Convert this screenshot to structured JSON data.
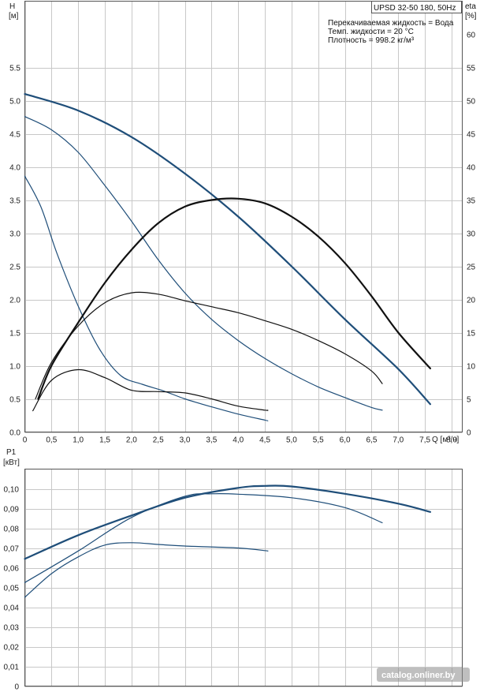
{
  "header": {
    "model": "UPSD 32-50 180, 50Hz",
    "eta_label": "eta",
    "eta_unit": "[%]"
  },
  "info": {
    "line1": "Перекачиваемая жидкость = Вода",
    "line2": "Темп. жидкости = 20 °C",
    "line3": "Плотность = 998.2 кг/м³"
  },
  "watermark": "catalog.onliner.by",
  "colors": {
    "blue": "#1f4e79",
    "black": "#111111",
    "grid": "#c8c8c8"
  },
  "chart_data": [
    {
      "type": "line",
      "name": "head-and-efficiency",
      "xlabel": "Q [м³/ч]",
      "ylabel": "H [м]",
      "y2label": "eta [%]",
      "xlim": [
        0,
        8.2
      ],
      "ylim": [
        0,
        6.5
      ],
      "y2lim": [
        0,
        65
      ],
      "x_ticks": [
        "0",
        "0,5",
        "1,0",
        "1,5",
        "2,0",
        "2,5",
        "3,0",
        "3,5",
        "4,0",
        "4,5",
        "5,0",
        "5,5",
        "6,0",
        "6,5",
        "7,0",
        "7,5",
        "8,0"
      ],
      "y_ticks": [
        "0.0",
        "0.5",
        "1.0",
        "1.5",
        "2.0",
        "2.5",
        "3.0",
        "3.5",
        "4.0",
        "4.5",
        "5.0",
        "5.5"
      ],
      "y2_ticks": [
        "0",
        "5",
        "10",
        "15",
        "20",
        "25",
        "30",
        "35",
        "40",
        "45",
        "50",
        "55",
        "60"
      ],
      "series": [
        {
          "axis": "H",
          "color": "blue",
          "width": 2.2,
          "points": [
            [
              0,
              5.1
            ],
            [
              1,
              4.85
            ],
            [
              2,
              4.45
            ],
            [
              3,
              3.9
            ],
            [
              4,
              3.25
            ],
            [
              5,
              2.5
            ],
            [
              6,
              1.7
            ],
            [
              7,
              0.95
            ],
            [
              7.6,
              0.42
            ]
          ]
        },
        {
          "axis": "H",
          "color": "blue",
          "width": 1.2,
          "points": [
            [
              0,
              4.76
            ],
            [
              0.5,
              4.56
            ],
            [
              1,
              4.22
            ],
            [
              1.5,
              3.72
            ],
            [
              2,
              3.18
            ],
            [
              2.5,
              2.6
            ],
            [
              3,
              2.1
            ],
            [
              3.5,
              1.7
            ],
            [
              4,
              1.38
            ],
            [
              4.5,
              1.11
            ],
            [
              5,
              0.88
            ],
            [
              5.5,
              0.68
            ],
            [
              6,
              0.52
            ],
            [
              6.5,
              0.37
            ],
            [
              6.7,
              0.33
            ]
          ]
        },
        {
          "axis": "H",
          "color": "blue",
          "width": 1.2,
          "points": [
            [
              0,
              3.86
            ],
            [
              0.3,
              3.4
            ],
            [
              0.6,
              2.7
            ],
            [
              1,
              1.9
            ],
            [
              1.4,
              1.25
            ],
            [
              1.8,
              0.85
            ],
            [
              2.2,
              0.72
            ],
            [
              2.6,
              0.62
            ],
            [
              3,
              0.5
            ],
            [
              3.5,
              0.38
            ],
            [
              4,
              0.27
            ],
            [
              4.5,
              0.18
            ],
            [
              4.55,
              0.17
            ]
          ]
        },
        {
          "axis": "eta",
          "color": "black",
          "width": 2.2,
          "points": [
            [
              0.25,
              5
            ],
            [
              0.5,
              10
            ],
            [
              1,
              16.5
            ],
            [
              1.5,
              22.5
            ],
            [
              2,
              27.5
            ],
            [
              2.5,
              31.5
            ],
            [
              3,
              34
            ],
            [
              3.5,
              35
            ],
            [
              4,
              35.2
            ],
            [
              4.5,
              34.5
            ],
            [
              5,
              32.5
            ],
            [
              5.5,
              29.5
            ],
            [
              6,
              25.5
            ],
            [
              6.5,
              20.5
            ],
            [
              7,
              15
            ],
            [
              7.6,
              9.6
            ]
          ]
        },
        {
          "axis": "eta",
          "color": "black",
          "width": 1.2,
          "points": [
            [
              0.2,
              5
            ],
            [
              0.5,
              10.5
            ],
            [
              1,
              16
            ],
            [
              1.5,
              19.5
            ],
            [
              2,
              21
            ],
            [
              2.5,
              20.8
            ],
            [
              3,
              19.8
            ],
            [
              3.5,
              18.9
            ],
            [
              4,
              18
            ],
            [
              4.5,
              16.8
            ],
            [
              5,
              15.5
            ],
            [
              5.5,
              13.8
            ],
            [
              6,
              11.8
            ],
            [
              6.5,
              9.2
            ],
            [
              6.7,
              7.3
            ]
          ]
        },
        {
          "axis": "eta",
          "color": "black",
          "width": 1.2,
          "points": [
            [
              0.15,
              3.2
            ],
            [
              0.5,
              7.8
            ],
            [
              1,
              9.4
            ],
            [
              1.5,
              8.2
            ],
            [
              2,
              6.3
            ],
            [
              2.5,
              6.1
            ],
            [
              3,
              5.9
            ],
            [
              3.5,
              5
            ],
            [
              4,
              3.9
            ],
            [
              4.5,
              3.3
            ],
            [
              4.55,
              3.3
            ]
          ]
        }
      ]
    },
    {
      "type": "line",
      "name": "power",
      "xlabel": "",
      "ylabel": "P1 [кВт]",
      "xlim": [
        0,
        8.2
      ],
      "ylim": [
        0,
        0.11
      ],
      "y_ticks": [
        "0",
        "0,01",
        "0,02",
        "0,03",
        "0,04",
        "0,05",
        "0,06",
        "0,07",
        "0,08",
        "0,09",
        "0,10"
      ],
      "series": [
        {
          "color": "blue",
          "width": 2.2,
          "points": [
            [
              0,
              0.0645
            ],
            [
              1,
              0.0765
            ],
            [
              2,
              0.0865
            ],
            [
              3,
              0.0955
            ],
            [
              4,
              0.1005
            ],
            [
              4.5,
              0.1015
            ],
            [
              5,
              0.1012
            ],
            [
              6,
              0.0975
            ],
            [
              7,
              0.0925
            ],
            [
              7.6,
              0.0883
            ]
          ]
        },
        {
          "color": "blue",
          "width": 1.2,
          "points": [
            [
              0,
              0.0525
            ],
            [
              1,
              0.0685
            ],
            [
              2,
              0.0855
            ],
            [
              3,
              0.0962
            ],
            [
              3.5,
              0.0975
            ],
            [
              4,
              0.0973
            ],
            [
              5,
              0.0955
            ],
            [
              6,
              0.0905
            ],
            [
              6.7,
              0.0828
            ]
          ]
        },
        {
          "color": "blue",
          "width": 1.2,
          "points": [
            [
              0,
              0.045
            ],
            [
              0.5,
              0.057
            ],
            [
              1,
              0.0655
            ],
            [
              1.5,
              0.0715
            ],
            [
              2,
              0.0727
            ],
            [
              2.5,
              0.0718
            ],
            [
              3,
              0.071
            ],
            [
              4,
              0.07
            ],
            [
              4.5,
              0.0687
            ],
            [
              4.55,
              0.0685
            ]
          ]
        }
      ]
    }
  ]
}
